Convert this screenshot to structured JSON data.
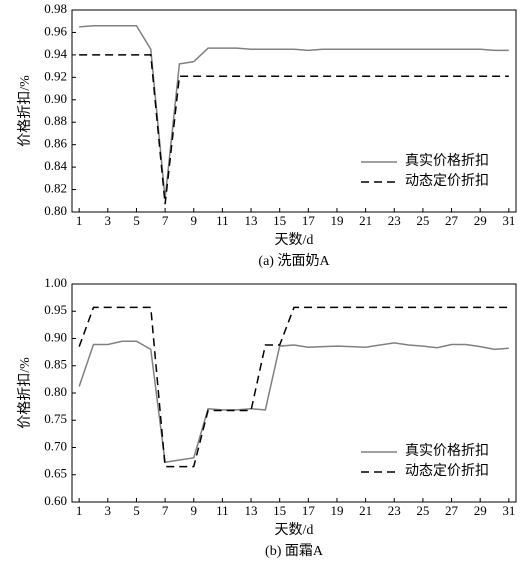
{
  "chart_data": [
    {
      "type": "line",
      "caption": "(a) 洗面奶A",
      "xlabel": "天数/d",
      "ylabel": "价格折扣/%",
      "x": [
        1,
        2,
        3,
        4,
        5,
        6,
        7,
        8,
        9,
        10,
        11,
        12,
        13,
        14,
        15,
        16,
        17,
        18,
        19,
        20,
        21,
        22,
        23,
        24,
        25,
        26,
        27,
        28,
        29,
        30,
        31
      ],
      "series": [
        {
          "name": "真实价格折扣",
          "color": "#808080",
          "line_style": "solid",
          "values": [
            0.965,
            0.966,
            0.966,
            0.966,
            0.966,
            0.945,
            0.812,
            0.932,
            0.934,
            0.946,
            0.946,
            0.946,
            0.945,
            0.945,
            0.945,
            0.945,
            0.944,
            0.945,
            0.945,
            0.945,
            0.945,
            0.945,
            0.945,
            0.945,
            0.945,
            0.945,
            0.945,
            0.945,
            0.945,
            0.944,
            0.944
          ]
        },
        {
          "name": "动态定价折扣",
          "color": "#000000",
          "line_style": "dashed",
          "values": [
            0.94,
            0.94,
            0.94,
            0.94,
            0.94,
            0.94,
            0.807,
            0.921,
            0.921,
            0.921,
            0.921,
            0.921,
            0.921,
            0.921,
            0.921,
            0.921,
            0.921,
            0.921,
            0.921,
            0.921,
            0.921,
            0.921,
            0.921,
            0.921,
            0.921,
            0.921,
            0.921,
            0.921,
            0.921,
            0.921,
            0.921
          ]
        }
      ],
      "xlim": [
        0.5,
        31.5
      ],
      "xticks": [
        1,
        3,
        5,
        7,
        9,
        11,
        13,
        15,
        17,
        19,
        21,
        23,
        25,
        27,
        29,
        31
      ],
      "ylim": [
        0.8,
        0.98
      ],
      "yticks": [
        {
          "value": 0.8,
          "label": "0.80"
        },
        0.82,
        0.84,
        0.86,
        0.88,
        {
          "value": 0.9,
          "label": "0.90"
        },
        0.92,
        0.94,
        0.96,
        0.98
      ],
      "legend": "lower right"
    },
    {
      "type": "line",
      "caption": "(b) 面霜A",
      "xlabel": "天数/d",
      "ylabel": "价格折扣/%",
      "x": [
        1,
        2,
        3,
        4,
        5,
        6,
        7,
        8,
        9,
        10,
        11,
        12,
        13,
        14,
        15,
        16,
        17,
        18,
        19,
        20,
        21,
        22,
        23,
        24,
        25,
        26,
        27,
        28,
        29,
        30,
        31
      ],
      "series": [
        {
          "name": "真实价格折扣",
          "color": "#808080",
          "line_style": "solid",
          "values": [
            0.812,
            0.889,
            0.889,
            0.895,
            0.895,
            0.88,
            0.673,
            0.677,
            0.681,
            0.771,
            0.769,
            0.769,
            0.771,
            0.769,
            0.886,
            0.888,
            0.884,
            0.885,
            0.886,
            0.885,
            0.884,
            0.888,
            0.892,
            0.888,
            0.886,
            0.883,
            0.889,
            0.889,
            0.885,
            0.88,
            0.882
          ]
        },
        {
          "name": "动态定价折扣",
          "color": "#000000",
          "line_style": "dashed",
          "values": [
            0.885,
            0.957,
            0.957,
            0.957,
            0.957,
            0.957,
            0.665,
            0.665,
            0.665,
            0.768,
            0.768,
            0.768,
            0.768,
            0.888,
            0.888,
            0.957,
            0.957,
            0.957,
            0.957,
            0.957,
            0.957,
            0.957,
            0.957,
            0.957,
            0.957,
            0.957,
            0.957,
            0.957,
            0.957,
            0.957,
            0.957
          ]
        }
      ],
      "xlim": [
        0.5,
        31.5
      ],
      "xticks": [
        1,
        3,
        5,
        7,
        9,
        11,
        13,
        15,
        17,
        19,
        21,
        23,
        25,
        27,
        29,
        31
      ],
      "ylim": [
        0.6,
        1.0
      ],
      "yticks": [
        {
          "value": 0.6,
          "label": "0.60"
        },
        0.65,
        {
          "value": 0.7,
          "label": "0.70"
        },
        0.75,
        {
          "value": 0.8,
          "label": "0.80"
        },
        0.85,
        {
          "value": 0.9,
          "label": "0.90"
        },
        0.95,
        {
          "value": 1.0,
          "label": "1.00"
        }
      ],
      "legend": "lower right"
    }
  ]
}
